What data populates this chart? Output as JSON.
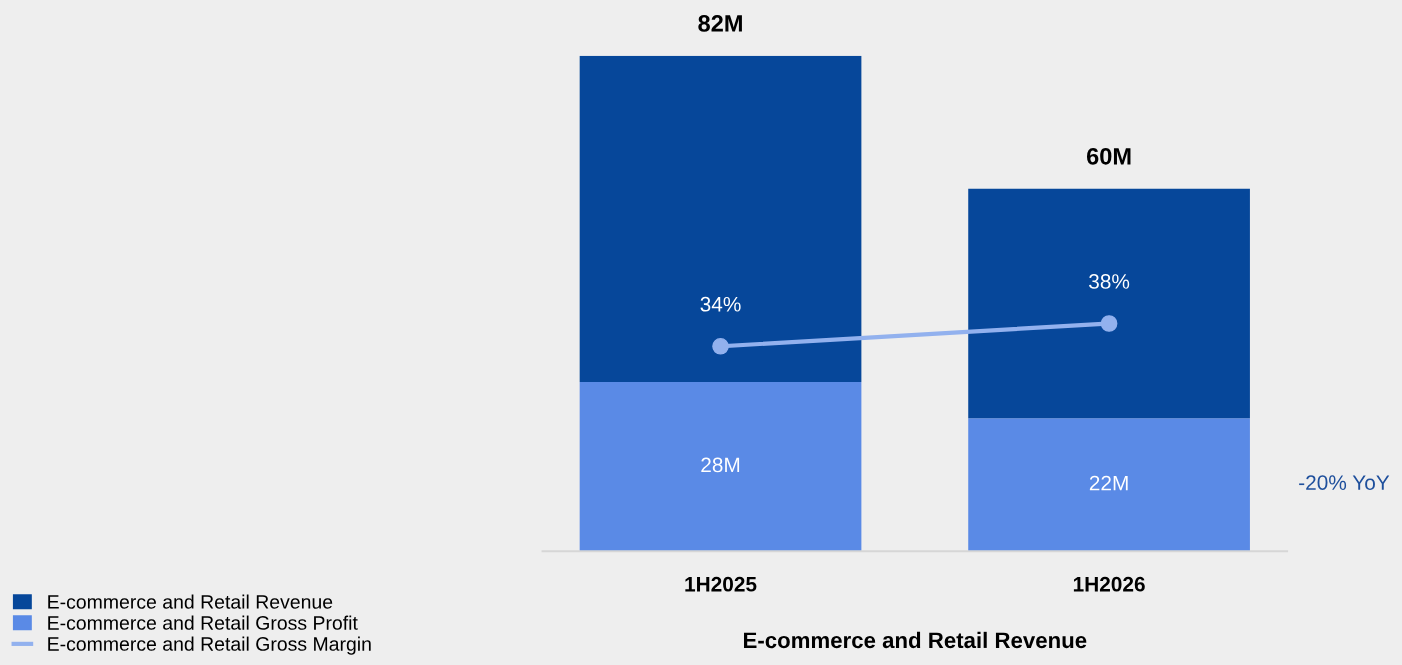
{
  "chart_data": {
    "type": "bar",
    "stacked": true,
    "categories": [
      "1H2025",
      "1H2026"
    ],
    "xlabel": "E-commerce and Retail Revenue",
    "series": [
      {
        "name": "E-commerce and Retail Gross Profit",
        "color": "#5a8ae6",
        "values": [
          28,
          22
        ],
        "value_labels": [
          "28M",
          "22M"
        ]
      },
      {
        "name": "E-commerce and Retail Revenue",
        "color": "#06479a",
        "values": [
          54,
          38
        ],
        "value_labels": [
          null,
          null
        ]
      },
      {
        "name": "E-commerce and Retail Gross Margin",
        "type": "line",
        "axis": "y2",
        "color": "#92b1ee",
        "marker": "circle",
        "values": [
          34,
          38
        ],
        "value_labels": [
          "34%",
          "38%"
        ]
      }
    ],
    "totals": [
      "82M",
      "60M"
    ],
    "ylim": [
      0,
      82
    ],
    "y2lim": [
      -2,
      85
    ],
    "tick_labels": "x",
    "grid": false,
    "legend": "bottom left",
    "annotations": [
      "-20% YoY"
    ]
  }
}
